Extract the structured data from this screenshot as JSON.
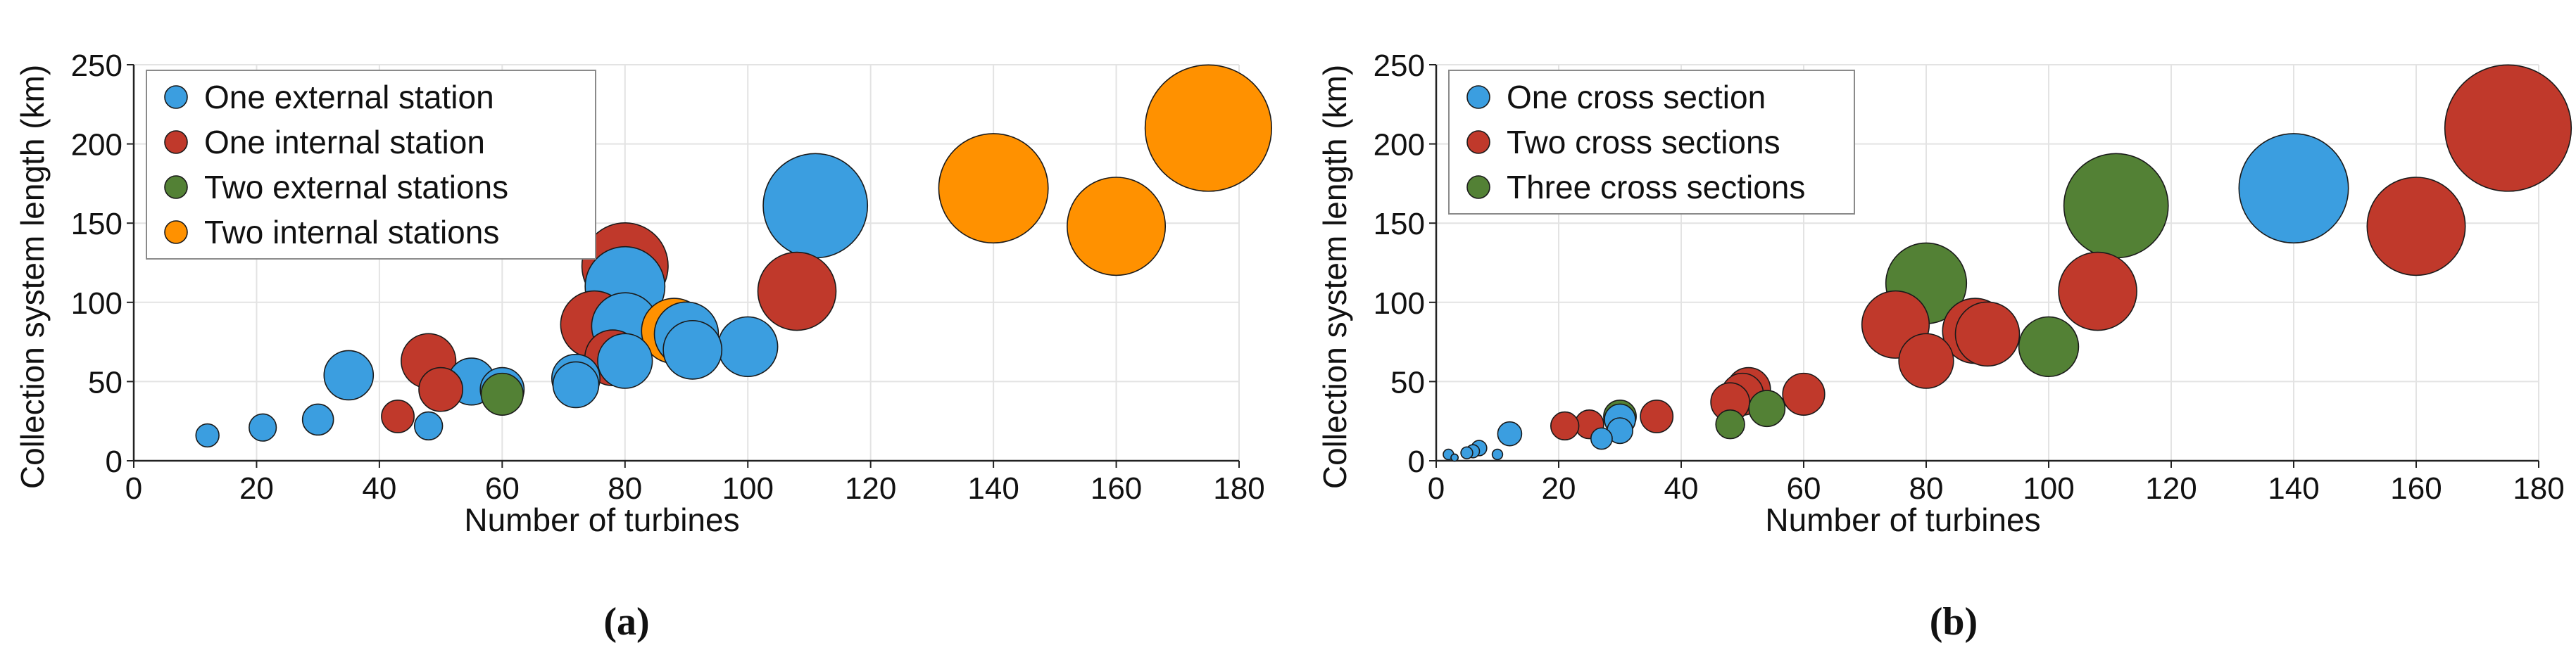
{
  "chart_data": [
    {
      "type": "scatter",
      "caption": "(a)",
      "xlabel": "Number of turbines",
      "ylabel": "Collection system length (km)",
      "xlim": [
        0,
        180
      ],
      "ylim": [
        0,
        250
      ],
      "xticks": [
        "0",
        "20",
        "40",
        "60",
        "80",
        "100",
        "120",
        "140",
        "160",
        "180"
      ],
      "yticks": [
        "0",
        "50",
        "100",
        "150",
        "200",
        "250"
      ],
      "grid": true,
      "legend_position": "top-left",
      "series": [
        {
          "name": "One external station",
          "color": "#3b9ee0",
          "points": [
            {
              "x": 12,
              "y": 16
            },
            {
              "x": 21,
              "y": 21
            },
            {
              "x": 30,
              "y": 26
            },
            {
              "x": 35,
              "y": 54
            },
            {
              "x": 48,
              "y": 22
            },
            {
              "x": 55,
              "y": 50
            },
            {
              "x": 60,
              "y": 45
            },
            {
              "x": 72,
              "y": 52
            },
            {
              "x": 72,
              "y": 48
            },
            {
              "x": 80,
              "y": 110
            },
            {
              "x": 80,
              "y": 85
            },
            {
              "x": 80,
              "y": 63
            },
            {
              "x": 90,
              "y": 80
            },
            {
              "x": 91,
              "y": 70
            },
            {
              "x": 100,
              "y": 72
            },
            {
              "x": 111,
              "y": 161
            }
          ]
        },
        {
          "name": "One internal station",
          "color": "#c0392b",
          "points": [
            {
              "x": 43,
              "y": 28
            },
            {
              "x": 48,
              "y": 63
            },
            {
              "x": 50,
              "y": 45
            },
            {
              "x": 75,
              "y": 86
            },
            {
              "x": 78,
              "y": 65
            },
            {
              "x": 80,
              "y": 123
            },
            {
              "x": 108,
              "y": 107
            }
          ]
        },
        {
          "name": "Two external stations",
          "color": "#538135",
          "points": [
            {
              "x": 60,
              "y": 42
            }
          ]
        },
        {
          "name": "Two internal stations",
          "color": "#ff9100",
          "points": [
            {
              "x": 88,
              "y": 82
            },
            {
              "x": 140,
              "y": 172
            },
            {
              "x": 160,
              "y": 148
            },
            {
              "x": 175,
              "y": 210
            }
          ]
        }
      ]
    },
    {
      "type": "scatter",
      "caption": "(b)",
      "xlabel": "Number of turbines",
      "ylabel": "Collection system length (km)",
      "xlim": [
        0,
        180
      ],
      "ylim": [
        0,
        250
      ],
      "xticks": [
        "0",
        "20",
        "40",
        "60",
        "80",
        "100",
        "120",
        "140",
        "160",
        "180"
      ],
      "yticks": [
        "0",
        "50",
        "100",
        "150",
        "200",
        "250"
      ],
      "grid": true,
      "legend_position": "top-left",
      "series": [
        {
          "name": "One cross section",
          "color": "#3b9ee0",
          "points": [
            {
              "x": 2,
              "y": 4
            },
            {
              "x": 3,
              "y": 2
            },
            {
              "x": 5,
              "y": 5
            },
            {
              "x": 6,
              "y": 6
            },
            {
              "x": 7,
              "y": 8
            },
            {
              "x": 10,
              "y": 4
            },
            {
              "x": 12,
              "y": 17
            },
            {
              "x": 27,
              "y": 14
            },
            {
              "x": 30,
              "y": 19
            },
            {
              "x": 30,
              "y": 26
            },
            {
              "x": 140,
              "y": 172
            }
          ]
        },
        {
          "name": "Two cross sections",
          "color": "#c0392b",
          "points": [
            {
              "x": 21,
              "y": 22
            },
            {
              "x": 25,
              "y": 23
            },
            {
              "x": 36,
              "y": 28
            },
            {
              "x": 48,
              "y": 37
            },
            {
              "x": 50,
              "y": 42
            },
            {
              "x": 51,
              "y": 45
            },
            {
              "x": 60,
              "y": 42
            },
            {
              "x": 75,
              "y": 86
            },
            {
              "x": 80,
              "y": 63
            },
            {
              "x": 88,
              "y": 82
            },
            {
              "x": 90,
              "y": 80
            },
            {
              "x": 108,
              "y": 107
            },
            {
              "x": 160,
              "y": 148
            },
            {
              "x": 175,
              "y": 210
            }
          ]
        },
        {
          "name": "Three cross sections",
          "color": "#538135",
          "points": [
            {
              "x": 30,
              "y": 28
            },
            {
              "x": 48,
              "y": 23
            },
            {
              "x": 54,
              "y": 33
            },
            {
              "x": 80,
              "y": 112
            },
            {
              "x": 100,
              "y": 72
            },
            {
              "x": 111,
              "y": 161
            }
          ]
        }
      ]
    }
  ]
}
